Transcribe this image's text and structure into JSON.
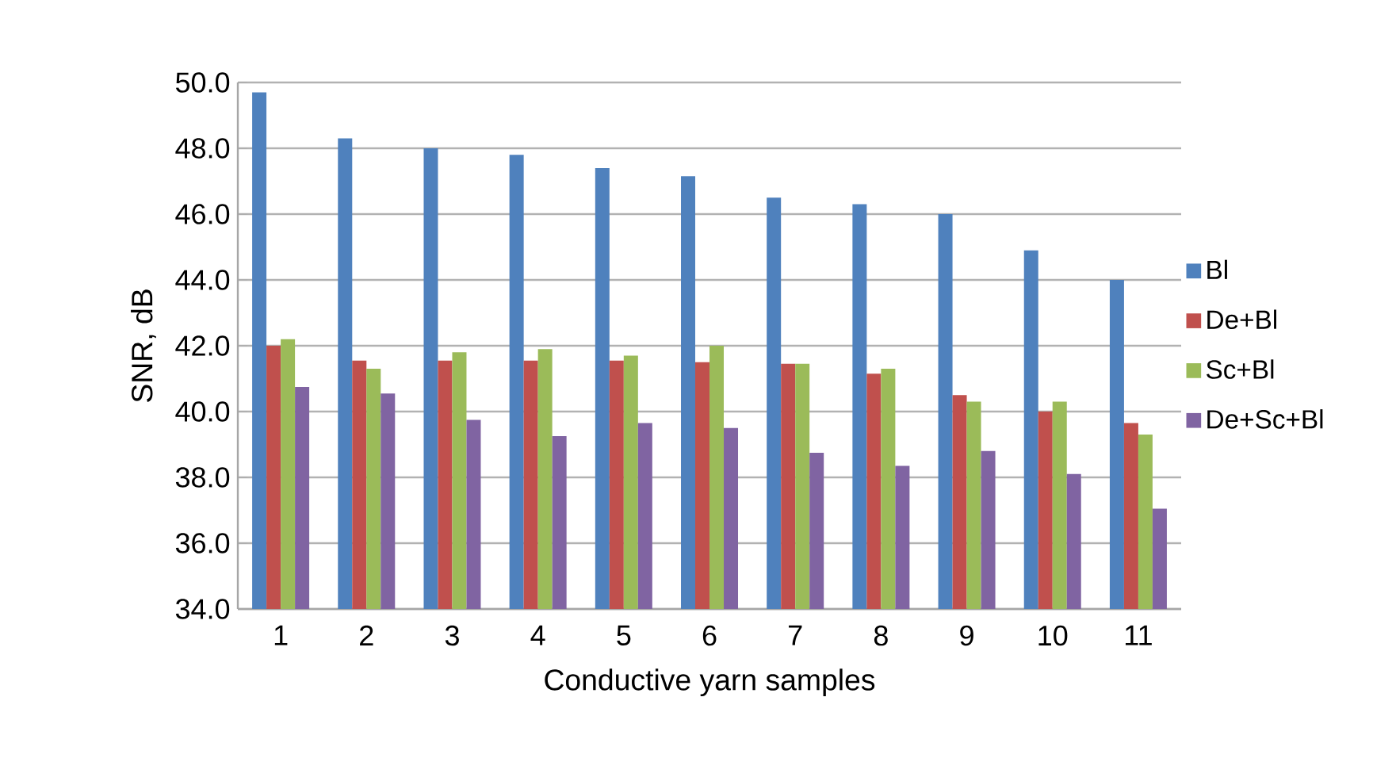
{
  "chart_data": {
    "type": "bar",
    "xlabel": "Conductive yarn samples",
    "ylabel": "SNR, dB",
    "categories": [
      "1",
      "2",
      "3",
      "4",
      "5",
      "6",
      "7",
      "8",
      "9",
      "10",
      "11"
    ],
    "series": [
      {
        "name": "Bl",
        "color": "#4f81bd",
        "values": [
          49.7,
          48.3,
          48.0,
          47.8,
          47.4,
          47.15,
          46.5,
          46.3,
          46.0,
          44.9,
          44.0
        ]
      },
      {
        "name": "De+Bl",
        "color": "#c0504d",
        "values": [
          42.0,
          41.55,
          41.55,
          41.55,
          41.55,
          41.5,
          41.45,
          41.15,
          40.5,
          40.0,
          39.65
        ]
      },
      {
        "name": "Sc+Bl",
        "color": "#9bbb59",
        "values": [
          42.2,
          41.3,
          41.8,
          41.9,
          41.7,
          42.0,
          41.45,
          41.3,
          40.3,
          40.3,
          39.3
        ]
      },
      {
        "name": "De+Sc+Bl",
        "color": "#8064a2",
        "values": [
          40.75,
          40.55,
          39.75,
          39.25,
          39.65,
          39.5,
          38.75,
          38.35,
          38.8,
          38.1,
          37.05
        ]
      }
    ],
    "ylim": [
      34,
      50
    ],
    "yticks": [
      {
        "value": 34,
        "label": "34.0"
      },
      {
        "value": 36,
        "label": "36.0"
      },
      {
        "value": 38,
        "label": "38.0"
      },
      {
        "value": 40,
        "label": "40.0"
      },
      {
        "value": 42,
        "label": "42.0"
      },
      {
        "value": 44,
        "label": "44.0"
      },
      {
        "value": 46,
        "label": "46.0"
      },
      {
        "value": 48,
        "label": "48.0"
      },
      {
        "value": 50,
        "label": "50.0"
      }
    ],
    "grid": "y",
    "legend": "right"
  }
}
